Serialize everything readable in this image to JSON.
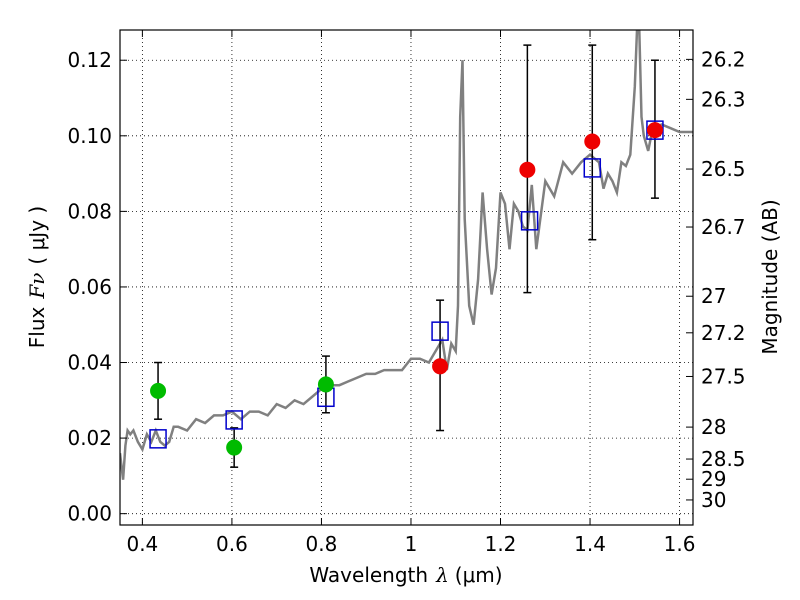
{
  "chart_data": {
    "type": "scatter",
    "xlabel_prefix": "Wavelength",
    "xlabel_symbol": "λ",
    "xlabel_unit": "(μm)",
    "ylabel_prefix": "Flux",
    "ylabel_symbol": "Fν",
    "ylabel_unit": "( μJy )",
    "y2label": "Magnitude (AB)",
    "xlim": [
      0.35,
      1.63
    ],
    "ylim": [
      -0.003,
      0.128
    ],
    "grid": true,
    "x_ticks": [
      {
        "value": 0.4,
        "label": "0.4"
      },
      {
        "value": 0.6,
        "label": "0.6"
      },
      {
        "value": 0.8,
        "label": "0.8"
      },
      {
        "value": 1.0,
        "label": "1"
      },
      {
        "value": 1.2,
        "label": "1.2"
      },
      {
        "value": 1.4,
        "label": "1.4"
      },
      {
        "value": 1.6,
        "label": "1.6"
      }
    ],
    "y_ticks": [
      {
        "value": 0.0,
        "label": "0.00"
      },
      {
        "value": 0.02,
        "label": "0.02"
      },
      {
        "value": 0.04,
        "label": "0.04"
      },
      {
        "value": 0.06,
        "label": "0.06"
      },
      {
        "value": 0.08,
        "label": "0.08"
      },
      {
        "value": 0.1,
        "label": "0.10"
      },
      {
        "value": 0.12,
        "label": "0.12"
      }
    ],
    "y2_ticks": [
      {
        "value": 26.2,
        "label": "26.2"
      },
      {
        "value": 26.3,
        "label": "26.3"
      },
      {
        "value": 26.5,
        "label": "26.5"
      },
      {
        "value": 26.7,
        "label": "26.7"
      },
      {
        "value": 27.0,
        "label": "27"
      },
      {
        "value": 27.2,
        "label": "27.2"
      },
      {
        "value": 27.5,
        "label": "27.5"
      },
      {
        "value": 28.0,
        "label": "28"
      },
      {
        "value": 28.5,
        "label": "28.5"
      },
      {
        "value": 29.0,
        "label": "29"
      },
      {
        "value": 30.0,
        "label": "30"
      }
    ],
    "colors": {
      "model": "#808080",
      "green_points": "#00bb00",
      "red_points": "#ee0000",
      "model_fluxes": "#0000cc",
      "errorbars": "#000000"
    },
    "model_spectrum": {
      "x": [
        0.35,
        0.357,
        0.362,
        0.367,
        0.373,
        0.38,
        0.39,
        0.4,
        0.41,
        0.42,
        0.43,
        0.44,
        0.45,
        0.46,
        0.47,
        0.48,
        0.5,
        0.52,
        0.54,
        0.56,
        0.58,
        0.6,
        0.62,
        0.64,
        0.66,
        0.68,
        0.7,
        0.72,
        0.74,
        0.76,
        0.78,
        0.8,
        0.82,
        0.84,
        0.86,
        0.88,
        0.9,
        0.92,
        0.94,
        0.96,
        0.98,
        1.0,
        1.02,
        1.04,
        1.06,
        1.07,
        1.08,
        1.09,
        1.1,
        1.105,
        1.11,
        1.115,
        1.12,
        1.13,
        1.14,
        1.15,
        1.16,
        1.17,
        1.18,
        1.19,
        1.2,
        1.21,
        1.22,
        1.23,
        1.24,
        1.25,
        1.26,
        1.27,
        1.28,
        1.3,
        1.32,
        1.34,
        1.36,
        1.38,
        1.4,
        1.42,
        1.43,
        1.44,
        1.45,
        1.46,
        1.47,
        1.48,
        1.49,
        1.5,
        1.505,
        1.51,
        1.515,
        1.52,
        1.53,
        1.54,
        1.56,
        1.58,
        1.6,
        1.63
      ],
      "y": [
        0.016,
        0.009,
        0.018,
        0.022,
        0.021,
        0.022,
        0.019,
        0.017,
        0.021,
        0.019,
        0.022,
        0.019,
        0.018,
        0.019,
        0.023,
        0.023,
        0.022,
        0.025,
        0.024,
        0.026,
        0.026,
        0.027,
        0.025,
        0.027,
        0.027,
        0.026,
        0.029,
        0.028,
        0.03,
        0.029,
        0.031,
        0.033,
        0.034,
        0.034,
        0.035,
        0.036,
        0.037,
        0.037,
        0.038,
        0.038,
        0.038,
        0.041,
        0.041,
        0.04,
        0.044,
        0.046,
        0.038,
        0.045,
        0.043,
        0.055,
        0.105,
        0.12,
        0.078,
        0.055,
        0.05,
        0.062,
        0.085,
        0.07,
        0.058,
        0.065,
        0.085,
        0.082,
        0.07,
        0.082,
        0.08,
        0.076,
        0.075,
        0.087,
        0.07,
        0.088,
        0.084,
        0.093,
        0.09,
        0.093,
        0.095,
        0.093,
        0.086,
        0.09,
        0.088,
        0.085,
        0.093,
        0.092,
        0.095,
        0.113,
        0.128,
        0.128,
        0.105,
        0.1,
        0.096,
        0.102,
        0.103,
        0.102,
        0.101,
        0.101
      ]
    },
    "model_fluxes": [
      {
        "x": 0.435,
        "y": 0.0198
      },
      {
        "x": 0.605,
        "y": 0.0248
      },
      {
        "x": 0.81,
        "y": 0.0308
      },
      {
        "x": 1.065,
        "y": 0.0483
      },
      {
        "x": 1.265,
        "y": 0.0775
      },
      {
        "x": 1.405,
        "y": 0.0915
      },
      {
        "x": 1.545,
        "y": 0.1015
      }
    ],
    "observed_points": [
      {
        "x": 0.435,
        "y": 0.0325,
        "yerr": [
          0.0075,
          0.0075
        ],
        "color": "green"
      },
      {
        "x": 0.605,
        "y": 0.0175,
        "yerr": [
          0.0052,
          0.0052
        ],
        "color": "green"
      },
      {
        "x": 0.81,
        "y": 0.0342,
        "yerr": [
          0.0075,
          0.0075
        ],
        "color": "green"
      },
      {
        "x": 1.065,
        "y": 0.039,
        "yerr": [
          0.017,
          0.0175
        ],
        "color": "red"
      },
      {
        "x": 1.26,
        "y": 0.091,
        "yerr": [
          0.0325,
          0.033
        ],
        "color": "red"
      },
      {
        "x": 1.405,
        "y": 0.0985,
        "yerr": [
          0.026,
          0.0255
        ],
        "color": "red"
      },
      {
        "x": 1.545,
        "y": 0.1015,
        "yerr": [
          0.018,
          0.0185
        ],
        "color": "red"
      }
    ]
  }
}
